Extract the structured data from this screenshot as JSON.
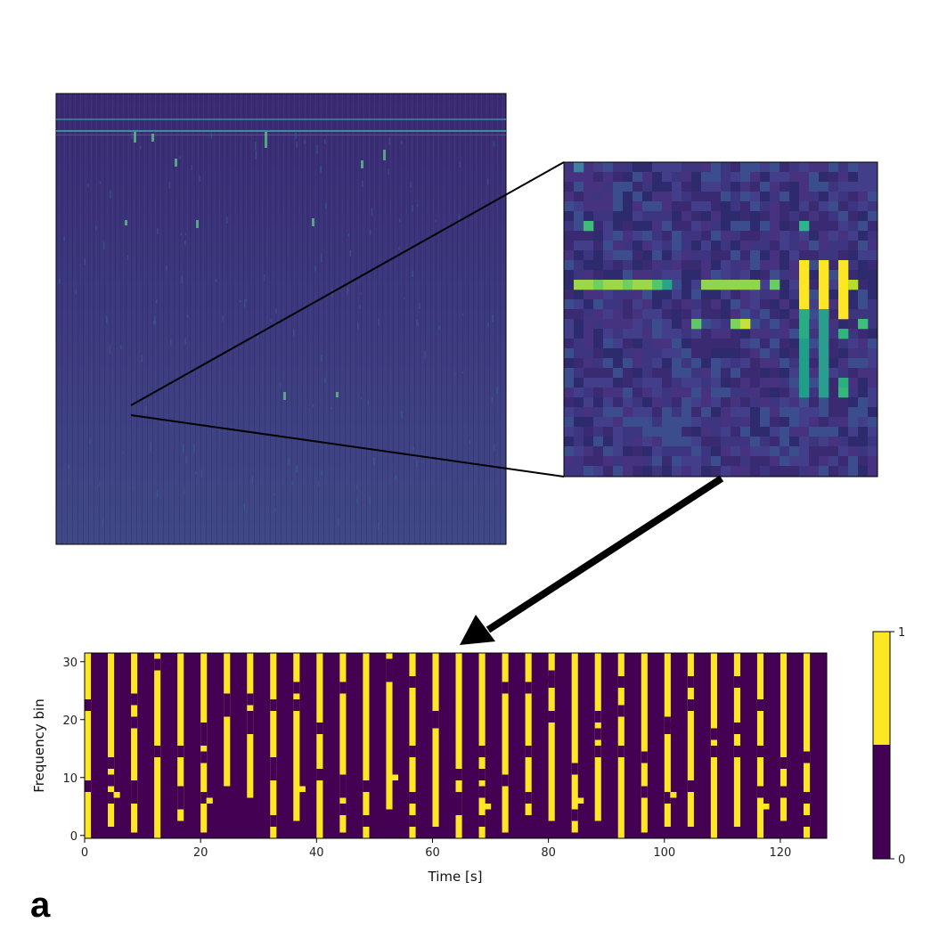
{
  "panel_label": "a",
  "colors": {
    "low": "#440154",
    "high": "#fde725",
    "spec_background": "#3b2c74",
    "arrow": "#000000"
  },
  "chart_data": [
    {
      "type": "heatmap",
      "name": "full spectrogram",
      "title": "",
      "xlabel": "",
      "ylabel": "",
      "colormap": "viridis",
      "axes_visible": false
    },
    {
      "type": "heatmap",
      "name": "zoomed spectrogram",
      "title": "",
      "xlabel": "",
      "ylabel": "",
      "colormap": "viridis",
      "axes_visible": false
    },
    {
      "type": "heatmap",
      "name": "binary spectrogram",
      "title": "",
      "xlabel": "Time [s]",
      "ylabel": "Frequency bin",
      "xlim": [
        0,
        128
      ],
      "ylim": [
        0,
        32
      ],
      "xticks": [
        0,
        20,
        40,
        60,
        80,
        100,
        120
      ],
      "yticks": [
        0,
        10,
        20,
        30
      ],
      "colorbar": {
        "ticks": [
          0,
          1
        ],
        "levels": [
          0,
          1
        ],
        "colors": [
          "#440154",
          "#fde725"
        ]
      },
      "column_step": 2,
      "active_columns": [
        [
          0,
          0,
          31
        ],
        [
          4,
          2,
          31
        ],
        [
          8,
          1,
          31
        ],
        [
          12,
          0,
          31
        ],
        [
          16,
          3,
          31
        ],
        [
          20,
          1,
          31
        ],
        [
          24,
          9,
          31
        ],
        [
          28,
          7,
          31
        ],
        [
          32,
          0,
          31
        ],
        [
          36,
          3,
          31
        ],
        [
          40,
          0,
          31
        ],
        [
          44,
          1,
          31
        ],
        [
          48,
          0,
          31
        ],
        [
          52,
          5,
          31
        ],
        [
          56,
          0,
          31
        ],
        [
          60,
          2,
          31
        ],
        [
          64,
          0,
          31
        ],
        [
          68,
          0,
          31
        ],
        [
          72,
          1,
          31
        ],
        [
          76,
          4,
          31
        ],
        [
          80,
          3,
          31
        ],
        [
          84,
          1,
          31
        ],
        [
          88,
          3,
          31
        ],
        [
          92,
          0,
          31
        ],
        [
          96,
          1,
          31
        ],
        [
          100,
          2,
          31
        ],
        [
          104,
          2,
          31
        ],
        [
          108,
          0,
          31
        ],
        [
          112,
          2,
          31
        ],
        [
          116,
          0,
          31
        ],
        [
          120,
          3,
          31
        ],
        [
          124,
          0,
          31
        ]
      ]
    }
  ]
}
